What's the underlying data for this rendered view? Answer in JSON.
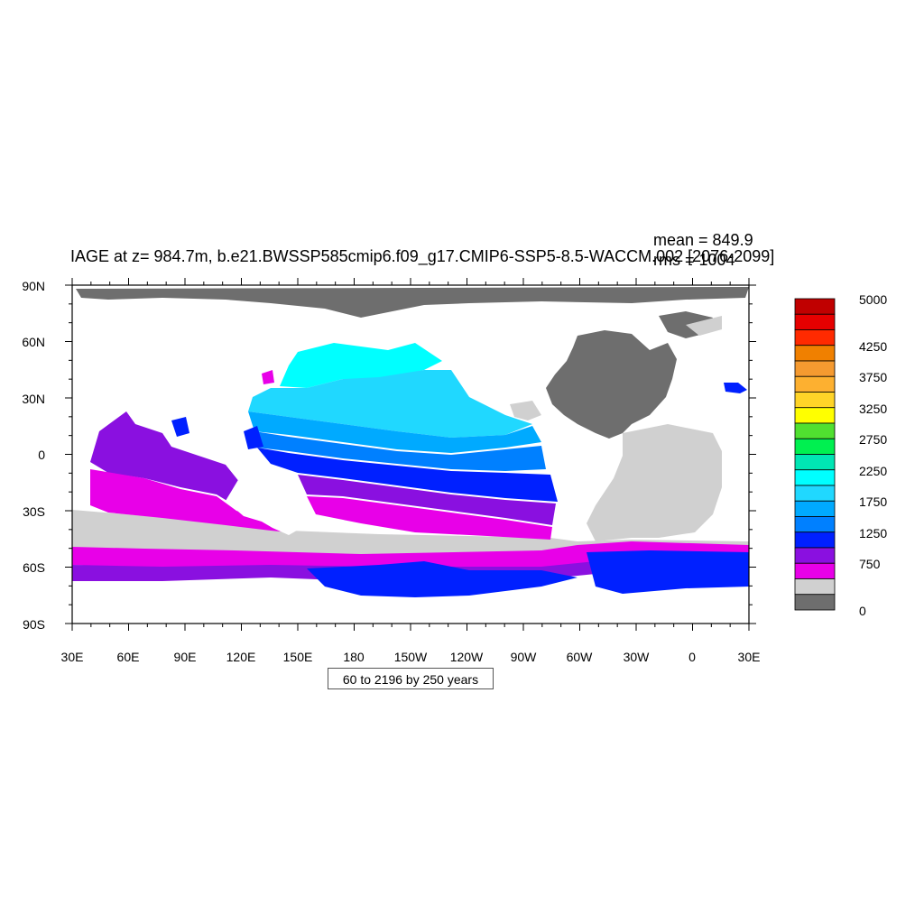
{
  "title": "IAGE at z= 984.7m, b.e21.BWSSP585cmip6.f09_g17.CMIP6-SSP5-8.5-WACCM.002 [2076-2099]",
  "stats": {
    "mean": "mean = 849.9",
    "rms": "rms = 1004"
  },
  "contour_info": "60 to 2196 by 250 years",
  "axes": {
    "y_labels": [
      "90N",
      "60N",
      "30N",
      "0",
      "30S",
      "60S",
      "90S"
    ],
    "x_labels": [
      "30E",
      "60E",
      "90E",
      "120E",
      "150E",
      "180",
      "150W",
      "120W",
      "90W",
      "60W",
      "30W",
      "0",
      "30E"
    ]
  },
  "colorbar": {
    "labels": [
      "5000",
      "4250",
      "3750",
      "3250",
      "2750",
      "2250",
      "1750",
      "1250",
      "750",
      "0"
    ],
    "colors_top_to_bottom": [
      "#c00000",
      "#e60000",
      "#ff2a00",
      "#f08000",
      "#f59a30",
      "#fdb030",
      "#ffd428",
      "#ffff00",
      "#50e030",
      "#00f050",
      "#00e6b4",
      "#00ffff",
      "#20d8ff",
      "#00aaff",
      "#0080ff",
      "#0020ff",
      "#8a10e0",
      "#e800e8",
      "#d0d0d0",
      "#6e6e6e"
    ]
  },
  "map_colors": {
    "land_gray": "#6e6e6e",
    "shallow_lightgray": "#d0d0d0",
    "magenta": "#e800e8",
    "purple": "#8a10e0",
    "blue": "#0020ff",
    "mid_blue": "#0080ff",
    "sky_blue": "#00aaff",
    "light_cyan": "#20d8ff",
    "cyan": "#00ffff"
  }
}
